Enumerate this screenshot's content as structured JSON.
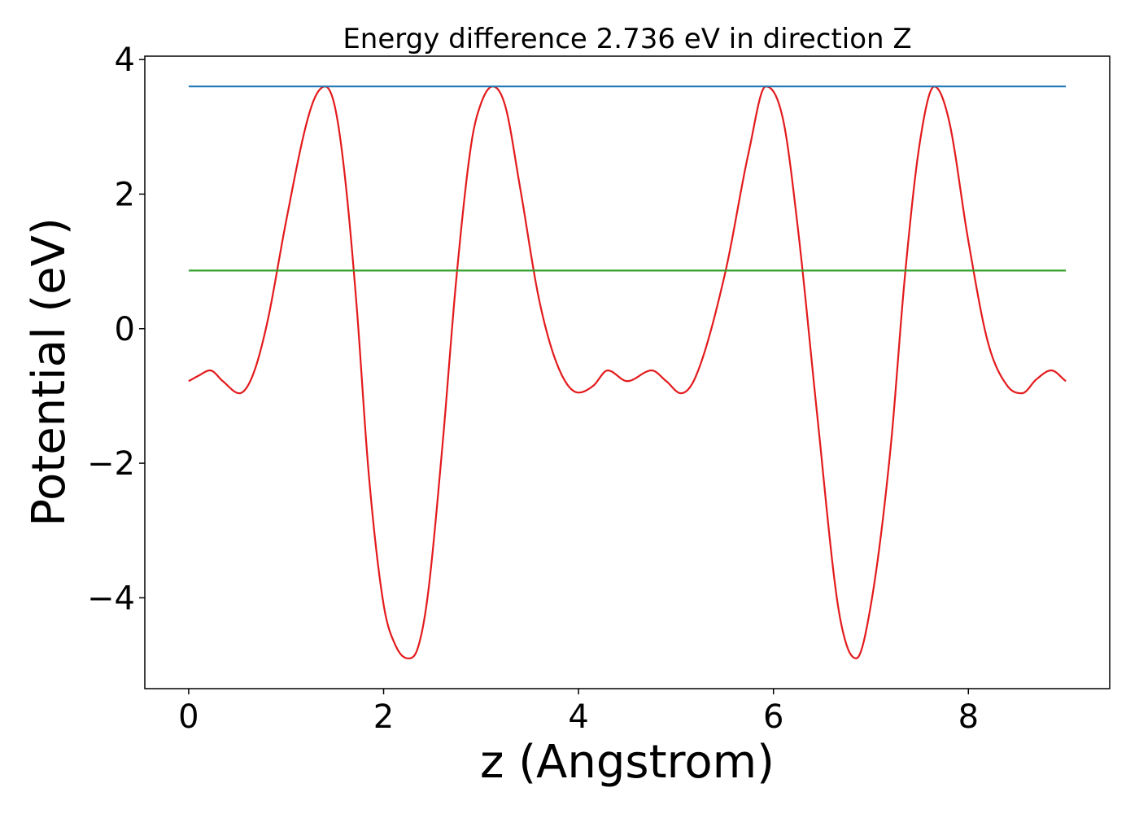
{
  "chart_data": {
    "type": "line",
    "title": "Energy difference 2.736 eV in direction Z",
    "xlabel": "z (Angstrom)",
    "ylabel": "Potential (eV)",
    "xlim": [
      -0.45,
      9.45
    ],
    "ylim": [
      -5.35,
      4.05
    ],
    "xticks": [
      0,
      2,
      4,
      6,
      8
    ],
    "xtick_labels": [
      "0",
      "2",
      "4",
      "6",
      "8"
    ],
    "yticks": [
      -4,
      -2,
      0,
      2,
      4
    ],
    "ytick_labels": [
      "−4",
      "−2",
      "0",
      "2",
      "4"
    ],
    "grid": false,
    "colors": {
      "potential": "#e31a1c",
      "upper_level": "#1f78b4",
      "lower_level": "#33a02c"
    },
    "series": [
      {
        "style": "curve",
        "color": "#e31a1c",
        "x": [
          0.0,
          0.1,
          0.22,
          0.35,
          0.52,
          0.65,
          0.8,
          1.0,
          1.2,
          1.3,
          1.4,
          1.5,
          1.6,
          1.72,
          1.85,
          2.0,
          2.12,
          2.25,
          2.35,
          2.45,
          2.6,
          2.75,
          2.9,
          3.0,
          3.12,
          3.25,
          3.4,
          3.6,
          3.8,
          4.0,
          4.15,
          4.3,
          4.5,
          4.75,
          4.9,
          5.05,
          5.2,
          5.5,
          5.75,
          5.92,
          6.1,
          6.25,
          6.45,
          6.65,
          6.75,
          6.85,
          7.0,
          7.2,
          7.35,
          7.5,
          7.65,
          7.8,
          8.0,
          8.2,
          8.4,
          8.55,
          8.7,
          8.85,
          9.0
        ],
        "y": [
          -0.78,
          -0.7,
          -0.62,
          -0.78,
          -0.96,
          -0.72,
          0.05,
          1.6,
          3.0,
          3.45,
          3.6,
          3.3,
          2.3,
          0.4,
          -2.2,
          -4.1,
          -4.7,
          -4.9,
          -4.75,
          -4.0,
          -1.8,
          0.8,
          2.75,
          3.35,
          3.6,
          3.3,
          2.1,
          0.4,
          -0.6,
          -0.95,
          -0.85,
          -0.62,
          -0.78,
          -0.62,
          -0.78,
          -0.96,
          -0.72,
          0.8,
          2.65,
          3.6,
          3.1,
          1.5,
          -1.3,
          -4.0,
          -4.7,
          -4.9,
          -4.1,
          -1.8,
          0.8,
          2.75,
          3.6,
          3.1,
          1.3,
          -0.2,
          -0.85,
          -0.96,
          -0.75,
          -0.62,
          -0.78
        ]
      },
      {
        "style": "flat",
        "color": "#1f78b4",
        "x": [
          0.0,
          9.0
        ],
        "y": [
          3.6,
          3.6
        ]
      },
      {
        "style": "flat",
        "color": "#33a02c",
        "x": [
          0.0,
          9.0
        ],
        "y": [
          0.864,
          0.864
        ]
      }
    ]
  }
}
